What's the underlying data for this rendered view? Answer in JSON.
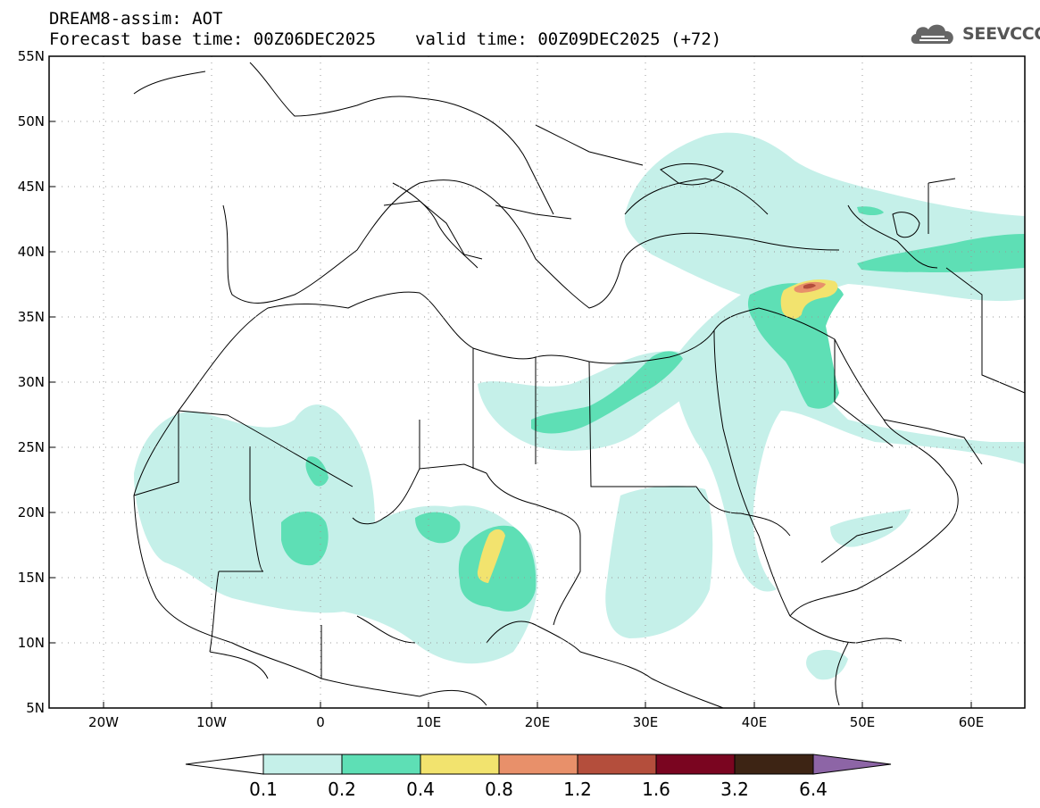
{
  "header": {
    "model_line": "DREAM8-assim: AOT",
    "base_time": "Forecast base time: 00Z06DEC2025",
    "valid_time": "valid time: 00Z09DEC2025 (+72)"
  },
  "logo": {
    "text": "SEEVCCC",
    "icon": "cloud-logo-icon"
  },
  "axes": {
    "lat_labels": [
      "55N",
      "50N",
      "45N",
      "40N",
      "35N",
      "30N",
      "25N",
      "20N",
      "15N",
      "10N",
      "5N"
    ],
    "lon_labels": [
      "20W",
      "10W",
      "0",
      "10E",
      "20E",
      "30E",
      "40E",
      "50E",
      "60E"
    ],
    "lat_range": [
      5,
      55
    ],
    "lon_range": [
      -25,
      65
    ]
  },
  "colorbar": {
    "labels": [
      "0.1",
      "0.2",
      "0.4",
      "0.8",
      "1.2",
      "1.6",
      "3.2",
      "6.4"
    ],
    "colors": [
      "#c5f0e9",
      "#5edfb5",
      "#f2e36e",
      "#e8906a",
      "#b44e3c",
      "#7a0520",
      "#3d2414",
      "#8d65a6"
    ],
    "under_color": "#ffffff"
  }
}
